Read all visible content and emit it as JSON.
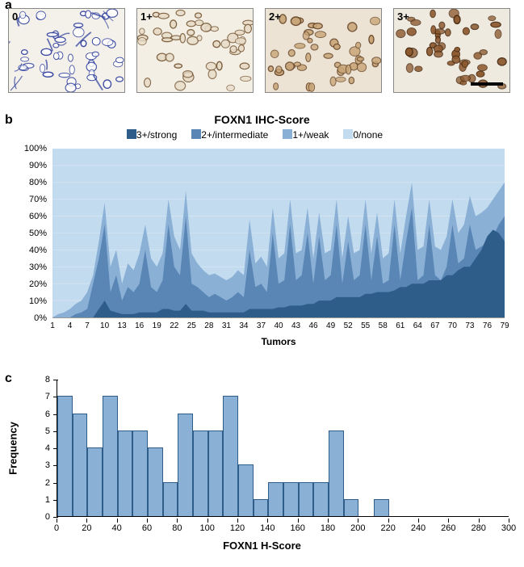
{
  "panel_labels": {
    "a": "a",
    "b": "b",
    "c": "c"
  },
  "panelA": {
    "images": [
      {
        "label": "0",
        "tint": "#2a3a9a",
        "cell_fill": "#ffffff",
        "cell_stroke": "#2a3a9a",
        "bg": "#f4f1ea"
      },
      {
        "label": "1+",
        "tint": "#9c7b5a",
        "cell_fill": "#e8dcc8",
        "cell_stroke": "#7a5c3a",
        "bg": "#f4efe5"
      },
      {
        "label": "2+",
        "tint": "#8a6240",
        "cell_fill": "#c9a679",
        "cell_stroke": "#6b4a2c",
        "bg": "#ece3d4"
      },
      {
        "label": "3+",
        "tint": "#6e4322",
        "cell_fill": "#8d5a30",
        "cell_stroke": "#4b2c12",
        "bg": "#efeae0"
      }
    ],
    "scalebar_on_last": true
  },
  "panelB": {
    "title": "FOXN1 IHC-Score",
    "legend": [
      {
        "name": "3+/strong",
        "color": "#2f5d8a"
      },
      {
        "name": "2+/intermediate",
        "color": "#5a86b5"
      },
      {
        "name": "1+/weak",
        "color": "#8ab0d6"
      },
      {
        "name": "0/none",
        "color": "#c3dbef"
      }
    ],
    "xlabel": "Tumors",
    "x_ticks": [
      1,
      4,
      7,
      10,
      13,
      16,
      19,
      22,
      25,
      28,
      31,
      34,
      37,
      40,
      43,
      46,
      49,
      52,
      55,
      58,
      61,
      64,
      67,
      70,
      73,
      76,
      79
    ],
    "ylim": [
      0,
      100
    ],
    "ytick_step": 10,
    "y_suffix": "%",
    "n": 79,
    "data": {
      "strong": [
        0,
        0,
        0,
        0,
        0,
        0,
        0,
        0,
        5,
        10,
        4,
        3,
        2,
        2,
        2,
        3,
        3,
        3,
        3,
        5,
        5,
        4,
        4,
        8,
        4,
        4,
        4,
        3,
        3,
        3,
        3,
        3,
        3,
        3,
        5,
        5,
        5,
        5,
        5,
        6,
        6,
        7,
        7,
        7,
        8,
        8,
        10,
        10,
        10,
        12,
        12,
        12,
        12,
        12,
        14,
        14,
        15,
        15,
        15,
        16,
        18,
        18,
        20,
        20,
        20,
        22,
        22,
        22,
        25,
        25,
        28,
        30,
        30,
        35,
        40,
        48,
        52,
        50,
        45
      ],
      "intermediate": [
        0,
        0,
        0,
        0,
        2,
        3,
        5,
        20,
        35,
        55,
        15,
        25,
        10,
        18,
        15,
        20,
        40,
        18,
        15,
        22,
        55,
        30,
        25,
        60,
        20,
        18,
        15,
        12,
        14,
        12,
        10,
        12,
        15,
        12,
        40,
        18,
        20,
        15,
        50,
        20,
        22,
        55,
        22,
        25,
        50,
        20,
        48,
        22,
        25,
        55,
        20,
        45,
        22,
        25,
        55,
        22,
        48,
        20,
        22,
        55,
        22,
        45,
        65,
        22,
        25,
        55,
        25,
        22,
        30,
        55,
        32,
        35,
        55,
        40,
        42,
        45,
        48,
        55,
        60
      ],
      "weak": [
        0,
        2,
        3,
        5,
        8,
        10,
        15,
        25,
        45,
        68,
        30,
        40,
        20,
        32,
        28,
        38,
        55,
        35,
        30,
        38,
        70,
        48,
        40,
        75,
        38,
        32,
        28,
        25,
        26,
        24,
        22,
        24,
        28,
        25,
        58,
        32,
        36,
        30,
        65,
        35,
        38,
        70,
        38,
        40,
        65,
        35,
        62,
        38,
        40,
        70,
        35,
        60,
        38,
        40,
        70,
        38,
        62,
        35,
        38,
        70,
        38,
        60,
        80,
        40,
        42,
        70,
        42,
        40,
        48,
        70,
        50,
        55,
        72,
        60,
        62,
        65,
        70,
        75,
        80
      ]
    },
    "label_fontsize": 12,
    "title_fontsize": 14,
    "background_color": "#ffffff"
  },
  "panelC": {
    "xlabel": "FOXN1 H-Score",
    "ylabel": "Frequency",
    "ylim": [
      0,
      8
    ],
    "ytick_step": 1,
    "xlim": [
      0,
      300
    ],
    "xtick_step": 20,
    "bar_color": "#8ab0d6",
    "bar_border": "#2f5d8a",
    "bin_width": 10,
    "bins_start": 0,
    "values": [
      7,
      6,
      4,
      7,
      5,
      5,
      4,
      2,
      6,
      5,
      5,
      7,
      3,
      1,
      2,
      2,
      2,
      2,
      5,
      1,
      0,
      1,
      0,
      0,
      0,
      0,
      0,
      0,
      0,
      0
    ],
    "label_fontsize": 13,
    "background_color": "#ffffff"
  }
}
